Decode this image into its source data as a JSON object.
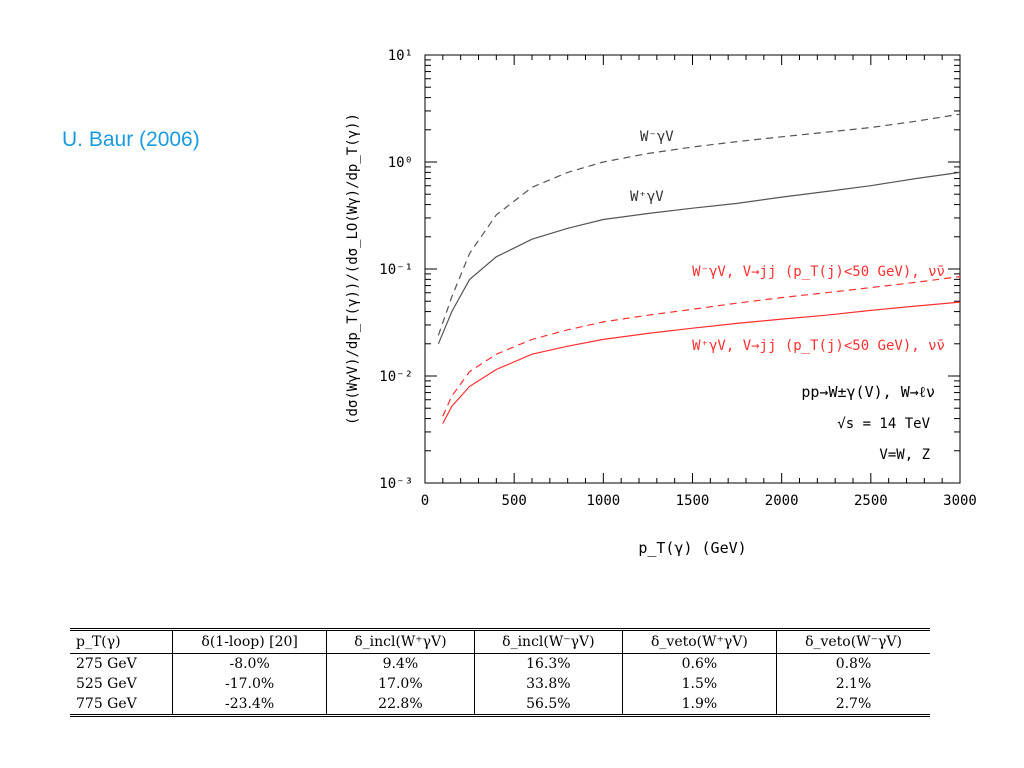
{
  "credit": "U. Baur (2006)",
  "chart_data": {
    "type": "line",
    "xlabel": "p_T(γ) (GeV)",
    "ylabel": "(dσ(WγV)/dp_T(γ))/(dσ_LO(Wγ)/dp_T(γ))",
    "xlim": [
      0,
      3000
    ],
    "ylim": [
      0.001,
      10
    ],
    "yscale": "log",
    "x_ticks": [
      "0",
      "500",
      "1000",
      "1500",
      "2000",
      "2500",
      "3000"
    ],
    "y_ticks": [
      "10⁻³",
      "10⁻²",
      "10⁻¹",
      "10⁰",
      "10¹"
    ],
    "series": [
      {
        "name": "W⁻γV",
        "color": "#555555",
        "dash": true,
        "x": [
          75,
          150,
          250,
          400,
          600,
          800,
          1000,
          1250,
          1500,
          1750,
          2000,
          2250,
          2500,
          2750,
          3000
        ],
        "y": [
          0.024,
          0.055,
          0.14,
          0.32,
          0.58,
          0.8,
          1.0,
          1.2,
          1.38,
          1.55,
          1.72,
          1.9,
          2.1,
          2.4,
          2.8
        ]
      },
      {
        "name": "W⁺γV",
        "color": "#555555",
        "dash": false,
        "x": [
          75,
          150,
          250,
          400,
          600,
          800,
          1000,
          1250,
          1500,
          1750,
          2000,
          2250,
          2500,
          2750,
          3000
        ],
        "y": [
          0.02,
          0.04,
          0.08,
          0.13,
          0.19,
          0.24,
          0.29,
          0.33,
          0.37,
          0.41,
          0.47,
          0.53,
          0.6,
          0.7,
          0.8
        ]
      },
      {
        "name": "W⁻γV, V→jj (p_T(j)<50 GeV), ν̄ν",
        "color": "#ff3030",
        "dash": true,
        "x": [
          100,
          150,
          250,
          400,
          600,
          800,
          1000,
          1250,
          1500,
          1750,
          2000,
          2250,
          2500,
          2750,
          3000
        ],
        "y": [
          0.0042,
          0.0065,
          0.011,
          0.016,
          0.022,
          0.027,
          0.032,
          0.037,
          0.042,
          0.048,
          0.054,
          0.06,
          0.067,
          0.075,
          0.085
        ]
      },
      {
        "name": "W⁺γV, V→jj (p_T(j)<50 GeV), ν̄ν",
        "color": "#ff3030",
        "dash": false,
        "x": [
          100,
          150,
          250,
          400,
          600,
          800,
          1000,
          1250,
          1500,
          1750,
          2000,
          2250,
          2500,
          2750,
          3000
        ],
        "y": [
          0.0036,
          0.0052,
          0.008,
          0.0115,
          0.016,
          0.019,
          0.022,
          0.025,
          0.028,
          0.031,
          0.034,
          0.037,
          0.041,
          0.045,
          0.049
        ]
      }
    ],
    "annotations": [
      "W⁻γV",
      "W⁺γV",
      "W⁻γV, V→jj (p_T(j)<50 GeV), ν̄ν",
      "W⁺γV, V→jj (p_T(j)<50 GeV), ν̄ν",
      "pp→W±γ(V), W→ℓν",
      "√s = 14 TeV",
      "V=W, Z"
    ]
  },
  "table": {
    "headers": [
      "p_T(γ)",
      "δ(1-loop) [20]",
      "δ_incl(W⁺γV)",
      "δ_incl(W⁻γV)",
      "δ_veto(W⁺γV)",
      "δ_veto(W⁻γV)"
    ],
    "rows": [
      [
        "275 GeV",
        "-8.0%",
        "9.4%",
        "16.3%",
        "0.6%",
        "0.8%"
      ],
      [
        "525 GeV",
        "-17.0%",
        "17.0%",
        "33.8%",
        "1.5%",
        "2.1%"
      ],
      [
        "775 GeV",
        "-23.4%",
        "22.8%",
        "56.5%",
        "1.9%",
        "2.7%"
      ]
    ]
  }
}
